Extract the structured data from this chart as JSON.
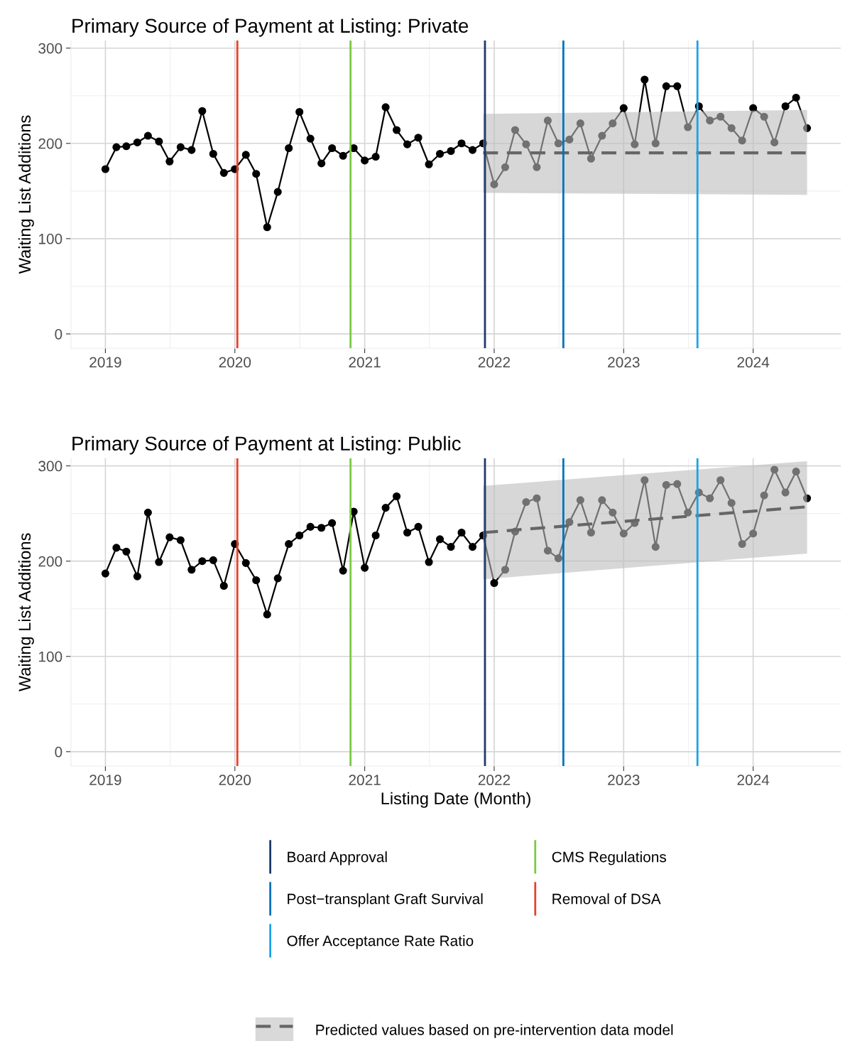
{
  "chart_data": [
    {
      "type": "line",
      "title": "Primary Source of Payment at Listing: Private",
      "ylabel": "Waiting List Additions",
      "x": [
        "2019-01",
        "2019-02",
        "2019-03",
        "2019-04",
        "2019-05",
        "2019-06",
        "2019-07",
        "2019-08",
        "2019-09",
        "2019-10",
        "2019-11",
        "2019-12",
        "2020-01",
        "2020-02",
        "2020-03",
        "2020-04",
        "2020-05",
        "2020-06",
        "2020-07",
        "2020-08",
        "2020-09",
        "2020-10",
        "2020-11",
        "2020-12",
        "2021-01",
        "2021-02",
        "2021-03",
        "2021-04",
        "2021-05",
        "2021-06",
        "2021-07",
        "2021-08",
        "2021-09",
        "2021-10",
        "2021-11",
        "2021-12",
        "2022-01",
        "2022-02",
        "2022-03",
        "2022-04",
        "2022-05",
        "2022-06",
        "2022-07",
        "2022-08",
        "2022-09",
        "2022-10",
        "2022-11",
        "2022-12",
        "2023-01",
        "2023-02",
        "2023-03",
        "2023-04",
        "2023-05",
        "2023-06",
        "2023-07",
        "2023-08",
        "2023-09",
        "2023-10",
        "2023-11",
        "2023-12",
        "2024-01",
        "2024-02",
        "2024-03",
        "2024-04",
        "2024-05",
        "2024-06"
      ],
      "series": [
        {
          "color": "#000000",
          "marker": "circle",
          "line_style": "solid",
          "values": [
            173,
            196,
            197,
            201,
            208,
            202,
            181,
            196,
            193,
            234,
            189,
            169,
            173,
            188,
            168,
            112,
            149,
            195,
            233,
            205,
            179,
            195,
            187,
            195,
            182,
            186,
            238,
            214,
            199,
            206,
            178,
            189,
            192,
            200,
            193,
            200,
            157,
            175,
            214,
            199,
            175,
            224,
            200,
            204,
            221,
            184,
            208,
            221,
            237,
            199,
            267,
            200,
            260,
            260,
            217,
            239,
            224,
            228,
            216,
            203,
            237,
            228,
            201,
            239,
            248,
            216
          ]
        },
        {
          "name": "Predicted values based on pre-intervention data model",
          "color": "#666666",
          "marker": "none",
          "line_style": "dashed",
          "x": [
            "2021-12",
            "2024-06"
          ],
          "values": [
            190,
            190
          ],
          "lower": [
            148,
            146
          ],
          "upper": [
            231,
            235
          ]
        }
      ],
      "ref_lines": [
        {
          "axis": "x",
          "value": "2021-12-06",
          "label": "Board Approval",
          "color": "#1b3a6b"
        },
        {
          "axis": "x",
          "value": "2022-07-15",
          "label": "Post−transplant Graft Survival",
          "color": "#0072bd"
        },
        {
          "axis": "x",
          "value": "2023-07-28",
          "label": "Offer Acceptance Rate Ratio",
          "color": "#1aa3e8"
        },
        {
          "axis": "x",
          "value": "2020-11-22",
          "label": "CMS Regulations",
          "color": "#7ac943"
        },
        {
          "axis": "x",
          "value": "2020-01-08",
          "label": "Removal of DSA",
          "color": "#e8412c"
        }
      ],
      "xlim": [
        "2018-09-26",
        "2024-09-04"
      ],
      "ylim": [
        -15,
        308
      ],
      "xticks": [
        {
          "value": "2019-01-01",
          "label": "2019"
        },
        {
          "value": "2020-01-01",
          "label": "2020"
        },
        {
          "value": "2021-01-01",
          "label": "2021"
        },
        {
          "value": "2022-01-01",
          "label": "2022"
        },
        {
          "value": "2023-01-01",
          "label": "2023"
        },
        {
          "value": "2024-01-01",
          "label": "2024"
        }
      ],
      "yticks": [
        0,
        100,
        200,
        300
      ],
      "grid": true,
      "legend": "bottom"
    },
    {
      "type": "line",
      "title": "Primary Source of Payment at Listing: Public",
      "xlabel": "Listing Date (Month)",
      "ylabel": "Waiting List Additions",
      "x": [
        "2019-01",
        "2019-02",
        "2019-03",
        "2019-04",
        "2019-05",
        "2019-06",
        "2019-07",
        "2019-08",
        "2019-09",
        "2019-10",
        "2019-11",
        "2019-12",
        "2020-01",
        "2020-02",
        "2020-03",
        "2020-04",
        "2020-05",
        "2020-06",
        "2020-07",
        "2020-08",
        "2020-09",
        "2020-10",
        "2020-11",
        "2020-12",
        "2021-01",
        "2021-02",
        "2021-03",
        "2021-04",
        "2021-05",
        "2021-06",
        "2021-07",
        "2021-08",
        "2021-09",
        "2021-10",
        "2021-11",
        "2021-12",
        "2022-01",
        "2022-02",
        "2022-03",
        "2022-04",
        "2022-05",
        "2022-06",
        "2022-07",
        "2022-08",
        "2022-09",
        "2022-10",
        "2022-11",
        "2022-12",
        "2023-01",
        "2023-02",
        "2023-03",
        "2023-04",
        "2023-05",
        "2023-06",
        "2023-07",
        "2023-08",
        "2023-09",
        "2023-10",
        "2023-11",
        "2023-12",
        "2024-01",
        "2024-02",
        "2024-03",
        "2024-04",
        "2024-05",
        "2024-06"
      ],
      "series": [
        {
          "color": "#000000",
          "marker": "circle",
          "line_style": "solid",
          "values": [
            187,
            214,
            210,
            184,
            251,
            199,
            225,
            222,
            191,
            200,
            201,
            174,
            218,
            198,
            180,
            144,
            182,
            218,
            227,
            236,
            235,
            240,
            190,
            252,
            193,
            227,
            256,
            268,
            230,
            236,
            199,
            223,
            215,
            230,
            215,
            227,
            177,
            191,
            231,
            262,
            266,
            211,
            203,
            241,
            264,
            230,
            264,
            251,
            229,
            240,
            285,
            215,
            280,
            281,
            251,
            272,
            266,
            285,
            261,
            218,
            229,
            269,
            296,
            272,
            294,
            266
          ]
        },
        {
          "color": "#666666",
          "marker": "none",
          "line_style": "dashed",
          "x": [
            "2021-12",
            "2024-06"
          ],
          "values": [
            230,
            257
          ],
          "lower": [
            181,
            208
          ],
          "upper": [
            279,
            305
          ]
        }
      ],
      "ref_lines": [
        {
          "axis": "x",
          "value": "2021-12-06",
          "color": "#1b3a6b"
        },
        {
          "axis": "x",
          "value": "2022-07-15",
          "color": "#0072bd"
        },
        {
          "axis": "x",
          "value": "2023-07-28",
          "color": "#1aa3e8"
        },
        {
          "axis": "x",
          "value": "2020-11-22",
          "color": "#7ac943"
        },
        {
          "axis": "x",
          "value": "2020-01-08",
          "color": "#e8412c"
        }
      ],
      "xlim": [
        "2018-09-26",
        "2024-09-04"
      ],
      "ylim": [
        -15,
        308
      ],
      "xticks": [
        {
          "value": "2019-01-01",
          "label": "2019"
        },
        {
          "value": "2020-01-01",
          "label": "2020"
        },
        {
          "value": "2021-01-01",
          "label": "2021"
        },
        {
          "value": "2022-01-01",
          "label": "2022"
        },
        {
          "value": "2023-01-01",
          "label": "2023"
        },
        {
          "value": "2024-01-01",
          "label": "2024"
        }
      ],
      "yticks": [
        0,
        100,
        200,
        300
      ],
      "grid": true
    }
  ]
}
